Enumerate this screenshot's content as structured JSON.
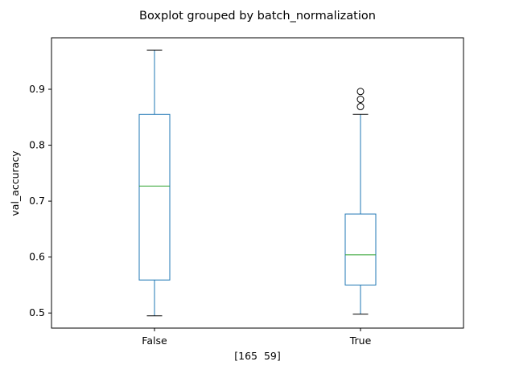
{
  "chart_data": {
    "type": "boxplot",
    "title": "Boxplot grouped by batch_normalization",
    "xlabel": "[165  59]",
    "ylabel": "val_accuracy",
    "categories": [
      "False",
      "True"
    ],
    "boxes": [
      {
        "category": "False",
        "whisker_low": 0.495,
        "q1": 0.559,
        "median": 0.727,
        "q3": 0.855,
        "whisker_high": 0.97,
        "outliers": []
      },
      {
        "category": "True",
        "whisker_low": 0.498,
        "q1": 0.55,
        "median": 0.604,
        "q3": 0.677,
        "whisker_high": 0.855,
        "outliers": [
          0.869,
          0.882,
          0.896
        ]
      }
    ],
    "ylim": [
      0.473,
      0.992
    ],
    "yticks": [
      0.5,
      0.6,
      0.7,
      0.8,
      0.9
    ],
    "grid": false,
    "colors": {
      "box": "#1f77b4",
      "median": "#2ca02c",
      "whisker": "#1f77b4",
      "cap": "#000000",
      "flier": "#000000"
    }
  }
}
